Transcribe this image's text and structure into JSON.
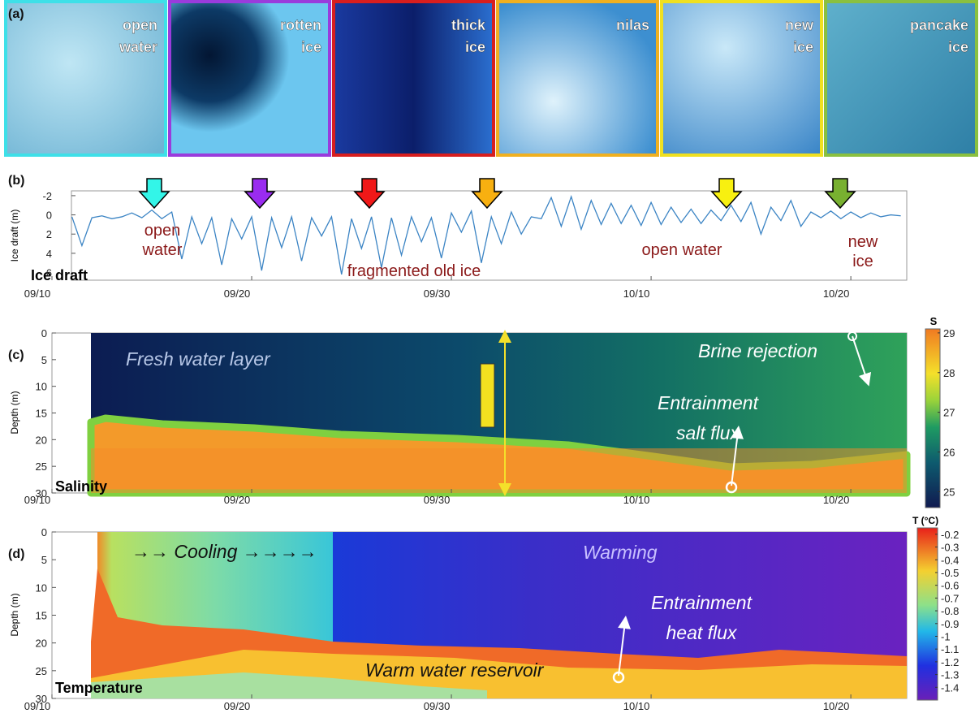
{
  "panel_a": {
    "label": "(a)",
    "photos": [
      {
        "lines": [
          "open",
          "water"
        ]
      },
      {
        "lines": [
          "rotten",
          "ice"
        ]
      },
      {
        "lines": [
          "thick",
          "ice"
        ]
      },
      {
        "lines": [
          "nilas"
        ]
      },
      {
        "lines": [
          "new",
          "ice"
        ]
      },
      {
        "lines": [
          "pancake",
          "ice"
        ]
      }
    ]
  },
  "date_axis": {
    "xlim": [
      0,
      42.8
    ],
    "xticks": [
      {
        "value": 0,
        "label": "09/10"
      },
      {
        "value": 10,
        "label": "09/20"
      },
      {
        "value": 20,
        "label": "09/30"
      },
      {
        "value": 30,
        "label": "10/10"
      },
      {
        "value": 40,
        "label": "10/20"
      }
    ]
  },
  "panel_b": {
    "label": "(b)",
    "y_label": "Ice draft (m)",
    "name": "Ice draft",
    "ylim": [
      -2.5,
      6.8
    ],
    "yticks": [
      -2,
      0,
      2,
      4,
      6
    ],
    "color": "#3b84c4",
    "annotations": [
      {
        "lines": [
          "open",
          "water"
        ]
      },
      {
        "lines": [
          "fragmented old ice"
        ]
      },
      {
        "lines": [
          "open water"
        ]
      },
      {
        "lines": [
          "new",
          "ice"
        ]
      }
    ],
    "x": [
      1,
      1.5,
      2,
      2.5,
      3,
      3.5,
      4,
      4.5,
      5,
      5.5,
      6,
      6.5,
      7,
      7.5,
      8,
      8.5,
      9,
      9.5,
      10,
      10.5,
      11,
      11.5,
      12,
      12.5,
      13,
      13.5,
      14,
      14.5,
      15,
      15.5,
      16,
      16.5,
      17,
      17.5,
      18,
      18.5,
      19,
      19.5,
      20,
      20.5,
      21,
      21.5,
      22,
      22.5,
      23,
      23.5,
      24,
      24.5,
      25,
      25.5,
      26,
      26.5,
      27,
      27.5,
      28,
      28.5,
      29,
      29.5,
      30,
      30.5,
      31,
      31.5,
      32,
      32.5,
      33,
      33.5,
      34,
      34.5,
      35,
      35.5,
      36,
      36.5,
      37,
      37.5,
      38,
      38.5,
      39,
      39.5,
      40,
      40.5,
      41,
      41.5,
      42,
      42.5
    ],
    "values": [
      0.2,
      3.2,
      0.3,
      0.1,
      0.4,
      0.2,
      -0.2,
      0.3,
      -0.5,
      0.4,
      -0.3,
      4.6,
      0.2,
      3.0,
      0.3,
      5.2,
      0.4,
      2.5,
      0.2,
      5.8,
      0.3,
      3.4,
      0.2,
      4.8,
      0.3,
      2.2,
      0.2,
      6.2,
      0.4,
      3.5,
      0.2,
      5.5,
      0.3,
      4.2,
      0.2,
      2.8,
      0.3,
      4.5,
      -0.2,
      1.8,
      -0.4,
      5.0,
      0.2,
      3.0,
      -0.3,
      2.0,
      0.2,
      0.4,
      -1.8,
      1.2,
      -1.9,
      1.5,
      -1.5,
      1.0,
      -1.2,
      0.9,
      -1.0,
      1.1,
      -1.3,
      1.0,
      -0.8,
      0.8,
      -0.6,
      0.9,
      -0.5,
      0.6,
      -1.0,
      0.7,
      -1.3,
      2.0,
      -0.8,
      0.6,
      -1.5,
      1.2,
      -0.3,
      0.3,
      -0.4,
      0.4,
      -0.3,
      0.3,
      -0.2,
      0.2,
      0,
      0.1
    ]
  },
  "panel_c": {
    "label": "(c)",
    "y_label": "Depth (m)",
    "name": "Salinity",
    "ylim": [
      0,
      30
    ],
    "yticks": [
      0,
      5,
      10,
      15,
      20,
      25,
      30
    ],
    "annotations": [
      {
        "lines": [
          "Fresh water layer"
        ]
      },
      {
        "lines": [
          "Brine rejection"
        ]
      },
      {
        "lines": [
          "Entrainment",
          "salt flux"
        ]
      }
    ],
    "colorbar": {
      "title": "S",
      "clim": [
        24.6,
        29.1
      ],
      "ticks": [
        25,
        26,
        27,
        28,
        29
      ]
    }
  },
  "panel_d": {
    "label": "(d)",
    "y_label": "Depth (m)",
    "name": "Temperature",
    "ylim": [
      0,
      30
    ],
    "yticks": [
      0,
      5,
      10,
      15,
      20,
      25,
      30
    ],
    "annotations": [
      {
        "lines": [
          "→→ Cooling →→→→"
        ]
      },
      {
        "lines": [
          "Warming"
        ]
      },
      {
        "lines": [
          "Entrainment",
          "heat flux"
        ]
      },
      {
        "lines": [
          "Warm water reservoir"
        ]
      }
    ],
    "colorbar": {
      "title": "T (°C)",
      "clim": [
        -1.5,
        -0.15
      ],
      "ticks": [
        -0.2,
        -0.3,
        -0.4,
        -0.5,
        -0.6,
        -0.7,
        -0.8,
        -0.9,
        -1,
        -1.1,
        -1.2,
        -1.3,
        -1.4
      ]
    }
  }
}
